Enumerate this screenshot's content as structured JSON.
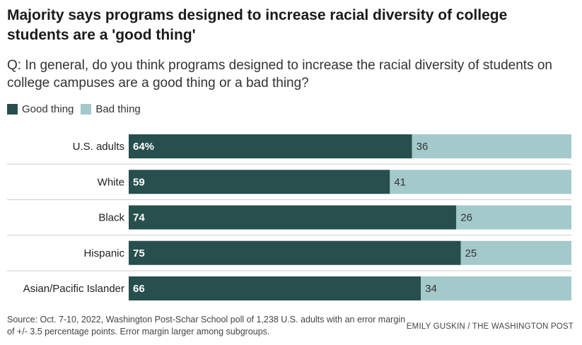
{
  "title": "Majority says programs designed to increase racial diversity of college students are a 'good thing'",
  "subtitle": "Q: In general, do you think programs designed to increase the racial diversity of students on college campuses are a good thing or a bad thing?",
  "legend": {
    "good_label": "Good thing",
    "bad_label": "Bad thing"
  },
  "colors": {
    "good": "#264f4d",
    "bad": "#a3c9cb",
    "divider": "#cccccc"
  },
  "chart_data": {
    "type": "bar",
    "orientation": "horizontal",
    "stacked": true,
    "categories": [
      "U.S. adults",
      "White",
      "Black",
      "Hispanic",
      "Asian/Pacific Islander"
    ],
    "series": [
      {
        "name": "Good thing",
        "values": [
          64,
          59,
          74,
          75,
          66
        ]
      },
      {
        "name": "Bad thing",
        "values": [
          36,
          41,
          26,
          25,
          34
        ]
      }
    ],
    "value_labels": {
      "Good thing": [
        "64%",
        "59",
        "74",
        "75",
        "66"
      ],
      "Bad thing": [
        "36",
        "41",
        "26",
        "25",
        "34"
      ]
    },
    "xlim": [
      0,
      100
    ],
    "legend_position": "top-left",
    "grid": false
  },
  "footer": {
    "source": "Source: Oct. 7-10, 2022, Washington Post-Schar School poll of 1,238 U.S. adults with an error margin of +/- 3.5 percentage points. Error margin larger among subgroups.",
    "credit": "EMILY GUSKIN / THE WASHINGTON POST"
  }
}
